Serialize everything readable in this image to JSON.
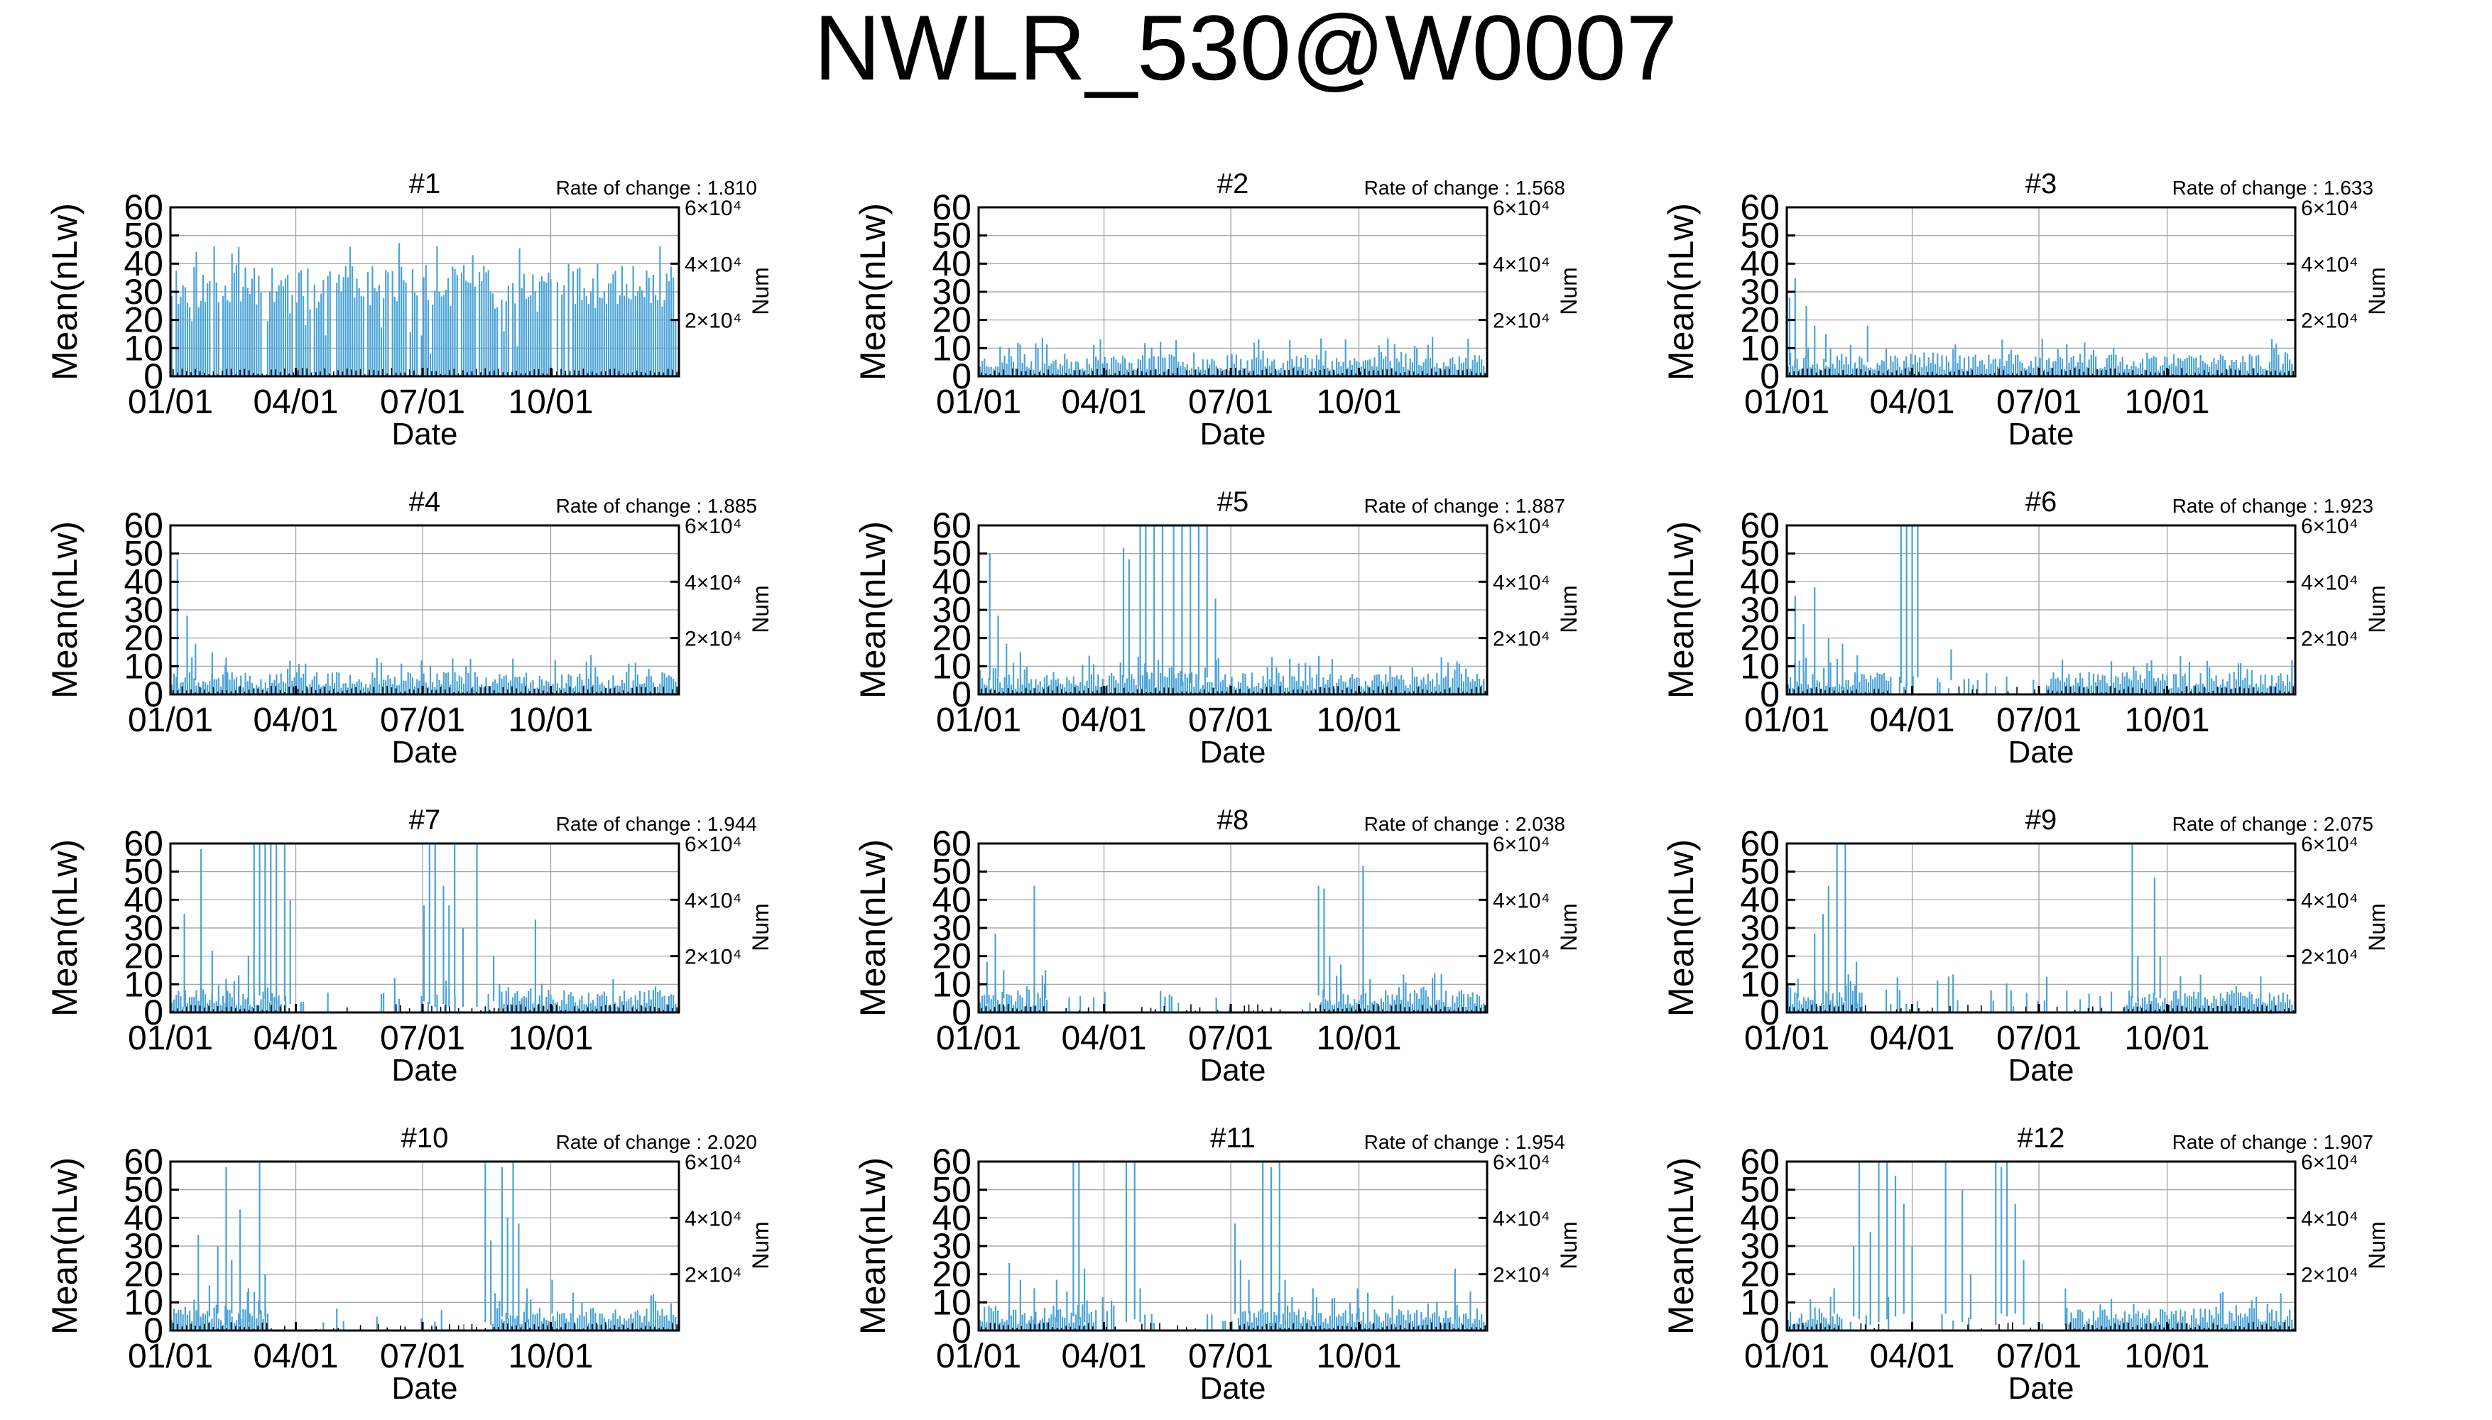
{
  "figure": {
    "title": "NWLR_530@W0007"
  },
  "chart_data": [
    {
      "type": "bar",
      "title": "#1",
      "rate_label": "Rate of change : 1.810",
      "ylabel": "Mean(nLw)",
      "y2label": "Num",
      "xlabel": "Date",
      "ylim": [
        0,
        60
      ],
      "yticks": [
        "0",
        "10",
        "20",
        "30",
        "40",
        "50",
        "60"
      ],
      "y2ticks": [
        {
          "value": 20000,
          "label": "2×10⁴"
        },
        {
          "value": 40000,
          "label": "4×10⁴"
        },
        {
          "value": 60000,
          "label": "6×10⁴"
        }
      ],
      "xlim_days": [
        0,
        365
      ],
      "xticks": [
        {
          "day": 0,
          "label": "01/01"
        },
        {
          "day": 90,
          "label": "04/01"
        },
        {
          "day": 181,
          "label": "07/01"
        },
        {
          "day": 273,
          "label": "10/01"
        }
      ],
      "grid": true,
      "style": "dense_high",
      "seed": 11
    },
    {
      "type": "bar",
      "title": "#2",
      "rate_label": "Rate of change : 1.568",
      "ylabel": "Mean(nLw)",
      "y2label": "Num",
      "xlabel": "Date",
      "ylim": [
        0,
        60
      ],
      "yticks": [
        "0",
        "10",
        "20",
        "30",
        "40",
        "50",
        "60"
      ],
      "y2ticks": [
        {
          "value": 20000,
          "label": "2×10⁴"
        },
        {
          "value": 40000,
          "label": "4×10⁴"
        },
        {
          "value": 60000,
          "label": "6×10⁴"
        }
      ],
      "xlim_days": [
        0,
        365
      ],
      "xticks": [
        {
          "day": 0,
          "label": "01/01"
        },
        {
          "day": 90,
          "label": "04/01"
        },
        {
          "day": 181,
          "label": "07/01"
        },
        {
          "day": 273,
          "label": "10/01"
        }
      ],
      "grid": true,
      "style": "low",
      "seed": 23
    },
    {
      "type": "bar",
      "title": "#3",
      "rate_label": "Rate of change : 1.633",
      "ylabel": "Mean(nLw)",
      "y2label": "Num",
      "xlabel": "Date",
      "ylim": [
        0,
        60
      ],
      "yticks": [
        "0",
        "10",
        "20",
        "30",
        "40",
        "50",
        "60"
      ],
      "y2ticks": [
        {
          "value": 20000,
          "label": "2×10⁴"
        },
        {
          "value": 40000,
          "label": "4×10⁴"
        },
        {
          "value": 60000,
          "label": "6×10⁴"
        }
      ],
      "xlim_days": [
        0,
        365
      ],
      "xticks": [
        {
          "day": 0,
          "label": "01/01"
        },
        {
          "day": 90,
          "label": "04/01"
        },
        {
          "day": 181,
          "label": "07/01"
        },
        {
          "day": 273,
          "label": "10/01"
        }
      ],
      "grid": true,
      "style": "low",
      "seed": 37,
      "spikes": [
        [
          2,
          28
        ],
        [
          6,
          35
        ],
        [
          14,
          25
        ],
        [
          20,
          18
        ],
        [
          28,
          15
        ],
        [
          58,
          18
        ]
      ]
    },
    {
      "type": "bar",
      "title": "#4",
      "rate_label": "Rate of change : 1.885",
      "ylabel": "Mean(nLw)",
      "y2label": "Num",
      "xlabel": "Date",
      "ylim": [
        0,
        60
      ],
      "yticks": [
        "0",
        "10",
        "20",
        "30",
        "40",
        "50",
        "60"
      ],
      "y2ticks": [
        {
          "value": 20000,
          "label": "2×10⁴"
        },
        {
          "value": 40000,
          "label": "4×10⁴"
        },
        {
          "value": 60000,
          "label": "6×10⁴"
        }
      ],
      "xlim_days": [
        0,
        365
      ],
      "xticks": [
        {
          "day": 0,
          "label": "01/01"
        },
        {
          "day": 90,
          "label": "04/01"
        },
        {
          "day": 181,
          "label": "07/01"
        },
        {
          "day": 273,
          "label": "10/01"
        }
      ],
      "grid": true,
      "style": "low",
      "seed": 41,
      "spikes": [
        [
          5,
          48
        ],
        [
          12,
          28
        ],
        [
          18,
          18
        ],
        [
          30,
          15
        ],
        [
          40,
          13
        ]
      ]
    },
    {
      "type": "bar",
      "title": "#5",
      "rate_label": "Rate of change : 1.887",
      "ylabel": "Mean(nLw)",
      "y2label": "Num",
      "xlabel": "Date",
      "ylim": [
        0,
        60
      ],
      "yticks": [
        "0",
        "10",
        "20",
        "30",
        "40",
        "50",
        "60"
      ],
      "y2ticks": [
        {
          "value": 20000,
          "label": "2×10⁴"
        },
        {
          "value": 40000,
          "label": "4×10⁴"
        },
        {
          "value": 60000,
          "label": "6×10⁴"
        }
      ],
      "xlim_days": [
        0,
        365
      ],
      "xticks": [
        {
          "day": 0,
          "label": "01/01"
        },
        {
          "day": 90,
          "label": "04/01"
        },
        {
          "day": 181,
          "label": "07/01"
        },
        {
          "day": 273,
          "label": "10/01"
        }
      ],
      "grid": true,
      "style": "low",
      "seed": 53,
      "spikes": [
        [
          8,
          50
        ],
        [
          14,
          28
        ],
        [
          20,
          18
        ],
        [
          30,
          15
        ],
        [
          104,
          52
        ],
        [
          108,
          48
        ],
        [
          116,
          60
        ],
        [
          120,
          60
        ],
        [
          126,
          60
        ],
        [
          132,
          60
        ],
        [
          140,
          60
        ],
        [
          146,
          60
        ],
        [
          152,
          60
        ],
        [
          158,
          60
        ],
        [
          164,
          60
        ],
        [
          170,
          34
        ]
      ]
    },
    {
      "type": "bar",
      "title": "#6",
      "rate_label": "Rate of change : 1.923",
      "ylabel": "Mean(nLw)",
      "y2label": "Num",
      "xlabel": "Date",
      "ylim": [
        0,
        60
      ],
      "yticks": [
        "0",
        "10",
        "20",
        "30",
        "40",
        "50",
        "60"
      ],
      "y2ticks": [
        {
          "value": 20000,
          "label": "2×10⁴"
        },
        {
          "value": 40000,
          "label": "4×10⁴"
        },
        {
          "value": 60000,
          "label": "6×10⁴"
        }
      ],
      "xlim_days": [
        0,
        365
      ],
      "xticks": [
        {
          "day": 0,
          "label": "01/01"
        },
        {
          "day": 90,
          "label": "04/01"
        },
        {
          "day": 181,
          "label": "07/01"
        },
        {
          "day": 273,
          "label": "10/01"
        }
      ],
      "grid": true,
      "style": "gap",
      "seed": 67,
      "gap_days": [
        75,
        185
      ],
      "spikes": [
        [
          6,
          35
        ],
        [
          12,
          25
        ],
        [
          20,
          38
        ],
        [
          30,
          20
        ],
        [
          40,
          18
        ],
        [
          82,
          60
        ],
        [
          86,
          60
        ],
        [
          90,
          60
        ],
        [
          94,
          60
        ],
        [
          118,
          16
        ]
      ]
    },
    {
      "type": "bar",
      "title": "#7",
      "rate_label": "Rate of change : 1.944",
      "ylabel": "Mean(nLw)",
      "y2label": "Num",
      "xlabel": "Date",
      "ylim": [
        0,
        60
      ],
      "yticks": [
        "0",
        "10",
        "20",
        "30",
        "40",
        "50",
        "60"
      ],
      "y2ticks": [
        {
          "value": 20000,
          "label": "2×10⁴"
        },
        {
          "value": 40000,
          "label": "4×10⁴"
        },
        {
          "value": 60000,
          "label": "6×10⁴"
        }
      ],
      "xlim_days": [
        0,
        365
      ],
      "xticks": [
        {
          "day": 0,
          "label": "01/01"
        },
        {
          "day": 90,
          "label": "04/01"
        },
        {
          "day": 181,
          "label": "07/01"
        },
        {
          "day": 273,
          "label": "10/01"
        }
      ],
      "grid": true,
      "style": "gap",
      "seed": 71,
      "gap_days": [
        80,
        235
      ],
      "spikes": [
        [
          10,
          35
        ],
        [
          22,
          58
        ],
        [
          30,
          22
        ],
        [
          40,
          12
        ],
        [
          56,
          20
        ],
        [
          60,
          60
        ],
        [
          64,
          60
        ],
        [
          68,
          60
        ],
        [
          72,
          60
        ],
        [
          76,
          60
        ],
        [
          82,
          60
        ],
        [
          86,
          40
        ],
        [
          182,
          38
        ],
        [
          186,
          60
        ],
        [
          190,
          60
        ],
        [
          196,
          45
        ],
        [
          200,
          38
        ],
        [
          204,
          60
        ],
        [
          210,
          30
        ],
        [
          220,
          60
        ],
        [
          232,
          20
        ],
        [
          262,
          33
        ]
      ]
    },
    {
      "type": "bar",
      "title": "#8",
      "rate_label": "Rate of change : 2.038",
      "ylabel": "Mean(nLw)",
      "y2label": "Num",
      "xlabel": "Date",
      "ylim": [
        0,
        60
      ],
      "yticks": [
        "0",
        "10",
        "20",
        "30",
        "40",
        "50",
        "60"
      ],
      "y2ticks": [
        {
          "value": 20000,
          "label": "2×10⁴"
        },
        {
          "value": 40000,
          "label": "4×10⁴"
        },
        {
          "value": 60000,
          "label": "6×10⁴"
        }
      ],
      "xlim_days": [
        0,
        365
      ],
      "xticks": [
        {
          "day": 0,
          "label": "01/01"
        },
        {
          "day": 90,
          "label": "04/01"
        },
        {
          "day": 181,
          "label": "07/01"
        },
        {
          "day": 273,
          "label": "10/01"
        }
      ],
      "grid": true,
      "style": "gap",
      "seed": 83,
      "gap_days": [
        50,
        245
      ],
      "spikes": [
        [
          6,
          18
        ],
        [
          12,
          28
        ],
        [
          18,
          15
        ],
        [
          40,
          45
        ],
        [
          48,
          15
        ],
        [
          244,
          45
        ],
        [
          248,
          44
        ],
        [
          252,
          20
        ],
        [
          260,
          17
        ],
        [
          276,
          52
        ]
      ]
    },
    {
      "type": "bar",
      "title": "#9",
      "rate_label": "Rate of change : 2.075",
      "ylabel": "Mean(nLw)",
      "y2label": "Num",
      "xlabel": "Date",
      "ylim": [
        0,
        60
      ],
      "yticks": [
        "0",
        "10",
        "20",
        "30",
        "40",
        "50",
        "60"
      ],
      "y2ticks": [
        {
          "value": 20000,
          "label": "2×10⁴"
        },
        {
          "value": 40000,
          "label": "4×10⁴"
        },
        {
          "value": 60000,
          "label": "6×10⁴"
        }
      ],
      "xlim_days": [
        0,
        365
      ],
      "xticks": [
        {
          "day": 0,
          "label": "01/01"
        },
        {
          "day": 90,
          "label": "04/01"
        },
        {
          "day": 181,
          "label": "07/01"
        },
        {
          "day": 273,
          "label": "10/01"
        }
      ],
      "grid": true,
      "style": "gap",
      "seed": 97,
      "gap_days": [
        55,
        245
      ],
      "spikes": [
        [
          8,
          12
        ],
        [
          20,
          28
        ],
        [
          26,
          35
        ],
        [
          30,
          45
        ],
        [
          36,
          60
        ],
        [
          42,
          60
        ],
        [
          50,
          18
        ],
        [
          248,
          60
        ],
        [
          252,
          20
        ],
        [
          264,
          48
        ],
        [
          268,
          20
        ]
      ]
    },
    {
      "type": "bar",
      "title": "#10",
      "rate_label": "Rate of change : 2.020",
      "ylabel": "Mean(nLw)",
      "y2label": "Num",
      "xlabel": "Date",
      "ylim": [
        0,
        60
      ],
      "yticks": [
        "0",
        "10",
        "20",
        "30",
        "40",
        "50",
        "60"
      ],
      "y2ticks": [
        {
          "value": 20000,
          "label": "2×10⁴"
        },
        {
          "value": 40000,
          "label": "4×10⁴"
        },
        {
          "value": 60000,
          "label": "6×10⁴"
        }
      ],
      "xlim_days": [
        0,
        365
      ],
      "xticks": [
        {
          "day": 0,
          "label": "01/01"
        },
        {
          "day": 90,
          "label": "04/01"
        },
        {
          "day": 181,
          "label": "07/01"
        },
        {
          "day": 273,
          "label": "10/01"
        }
      ],
      "grid": true,
      "style": "gap",
      "seed": 101,
      "gap_days": [
        70,
        230
      ],
      "spikes": [
        [
          20,
          34
        ],
        [
          28,
          16
        ],
        [
          34,
          30
        ],
        [
          40,
          58
        ],
        [
          44,
          25
        ],
        [
          50,
          43
        ],
        [
          56,
          15
        ],
        [
          64,
          60
        ],
        [
          68,
          20
        ],
        [
          226,
          60
        ],
        [
          230,
          32
        ],
        [
          238,
          58
        ],
        [
          242,
          40
        ],
        [
          246,
          60
        ],
        [
          250,
          38
        ],
        [
          256,
          15
        ],
        [
          274,
          18
        ]
      ]
    },
    {
      "type": "bar",
      "title": "#11",
      "rate_label": "Rate of change : 1.954",
      "ylabel": "Mean(nLw)",
      "y2label": "Num",
      "xlabel": "Date",
      "ylim": [
        0,
        60
      ],
      "yticks": [
        "0",
        "10",
        "20",
        "30",
        "40",
        "50",
        "60"
      ],
      "y2ticks": [
        {
          "value": 20000,
          "label": "2×10⁴"
        },
        {
          "value": 40000,
          "label": "4×10⁴"
        },
        {
          "value": 60000,
          "label": "6×10⁴"
        }
      ],
      "xlim_days": [
        0,
        365
      ],
      "xticks": [
        {
          "day": 0,
          "label": "01/01"
        },
        {
          "day": 90,
          "label": "04/01"
        },
        {
          "day": 181,
          "label": "07/01"
        },
        {
          "day": 273,
          "label": "10/01"
        }
      ],
      "grid": true,
      "style": "gap",
      "seed": 113,
      "gap_days": [
        85,
        185
      ],
      "spikes": [
        [
          22,
          24
        ],
        [
          30,
          18
        ],
        [
          40,
          15
        ],
        [
          56,
          18
        ],
        [
          68,
          60
        ],
        [
          72,
          60
        ],
        [
          76,
          22
        ],
        [
          106,
          60
        ],
        [
          112,
          60
        ],
        [
          116,
          15
        ],
        [
          184,
          38
        ],
        [
          188,
          25
        ],
        [
          194,
          18
        ],
        [
          204,
          60
        ],
        [
          210,
          58
        ],
        [
          216,
          60
        ],
        [
          220,
          18
        ],
        [
          240,
          15
        ],
        [
          272,
          15
        ],
        [
          342,
          22
        ]
      ]
    },
    {
      "type": "bar",
      "title": "#12",
      "rate_label": "Rate of change : 1.907",
      "ylabel": "Mean(nLw)",
      "y2label": "Num",
      "xlabel": "Date",
      "ylim": [
        0,
        60
      ],
      "yticks": [
        "0",
        "10",
        "20",
        "30",
        "40",
        "50",
        "60"
      ],
      "y2ticks": [
        {
          "value": 20000,
          "label": "2×10⁴"
        },
        {
          "value": 40000,
          "label": "4×10⁴"
        },
        {
          "value": 60000,
          "label": "6×10⁴"
        }
      ],
      "xlim_days": [
        0,
        365
      ],
      "xticks": [
        {
          "day": 0,
          "label": "01/01"
        },
        {
          "day": 90,
          "label": "04/01"
        },
        {
          "day": 181,
          "label": "07/01"
        },
        {
          "day": 273,
          "label": "10/01"
        }
      ],
      "grid": true,
      "style": "gap",
      "seed": 127,
      "gap_days": [
        40,
        200
      ],
      "spikes": [
        [
          34,
          15
        ],
        [
          48,
          30
        ],
        [
          52,
          60
        ],
        [
          60,
          35
        ],
        [
          66,
          60
        ],
        [
          72,
          60
        ],
        [
          78,
          55
        ],
        [
          84,
          45
        ],
        [
          90,
          30
        ],
        [
          114,
          60
        ],
        [
          126,
          50
        ],
        [
          132,
          20
        ],
        [
          150,
          60
        ],
        [
          154,
          58
        ],
        [
          158,
          60
        ],
        [
          164,
          45
        ],
        [
          170,
          25
        ],
        [
          200,
          15
        ]
      ]
    }
  ]
}
